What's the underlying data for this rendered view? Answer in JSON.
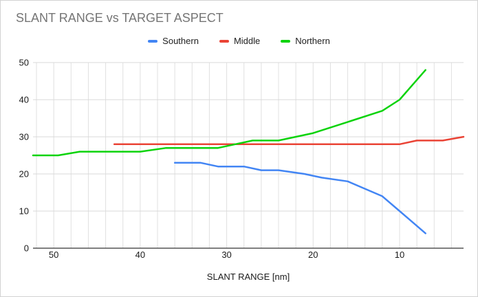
{
  "chart_data": {
    "type": "line",
    "title": "SLANT RANGE vs TARGET ASPECT",
    "xlabel": "SLANT RANGE [nm]",
    "ylabel": "",
    "x_axis_reversed": true,
    "x_domain": [
      52.4,
      2.6
    ],
    "ylim": [
      0,
      50
    ],
    "x_ticks": [
      50,
      40,
      30,
      20,
      10
    ],
    "y_ticks": [
      0,
      10,
      20,
      30,
      40,
      50
    ],
    "x_minor_grid_step": 2,
    "grid": true,
    "legend_position": "top",
    "colors": {
      "grid_vertical": "#e0e0e0",
      "grid_horizontal": "#d9d9d9",
      "axis_baseline": "#333333",
      "title_text": "#757575",
      "tick_text": "#1a1a1a"
    },
    "series": [
      {
        "name": "Southern",
        "color": "#4285f4",
        "points": [
          [
            36,
            23
          ],
          [
            33,
            23
          ],
          [
            31,
            22
          ],
          [
            28,
            22
          ],
          [
            26,
            21
          ],
          [
            24,
            21
          ],
          [
            21,
            20
          ],
          [
            19,
            19
          ],
          [
            16,
            18
          ],
          [
            14,
            16
          ],
          [
            12,
            14
          ],
          [
            10,
            10
          ],
          [
            9,
            8
          ],
          [
            8,
            6
          ],
          [
            7,
            4
          ]
        ]
      },
      {
        "name": "Middle",
        "color": "#ea4335",
        "points": [
          [
            43,
            28
          ],
          [
            10,
            28
          ],
          [
            8,
            29
          ],
          [
            5,
            29
          ],
          [
            2.6,
            30
          ]
        ]
      },
      {
        "name": "Northern",
        "color": "#0bd30b",
        "points": [
          [
            52.4,
            25
          ],
          [
            49.5,
            25
          ],
          [
            47,
            26
          ],
          [
            40,
            26
          ],
          [
            37,
            27
          ],
          [
            31,
            27
          ],
          [
            29,
            28
          ],
          [
            27,
            29
          ],
          [
            24,
            29
          ],
          [
            20,
            31
          ],
          [
            16,
            34
          ],
          [
            12,
            37
          ],
          [
            10,
            40
          ],
          [
            7,
            48
          ]
        ]
      }
    ]
  }
}
